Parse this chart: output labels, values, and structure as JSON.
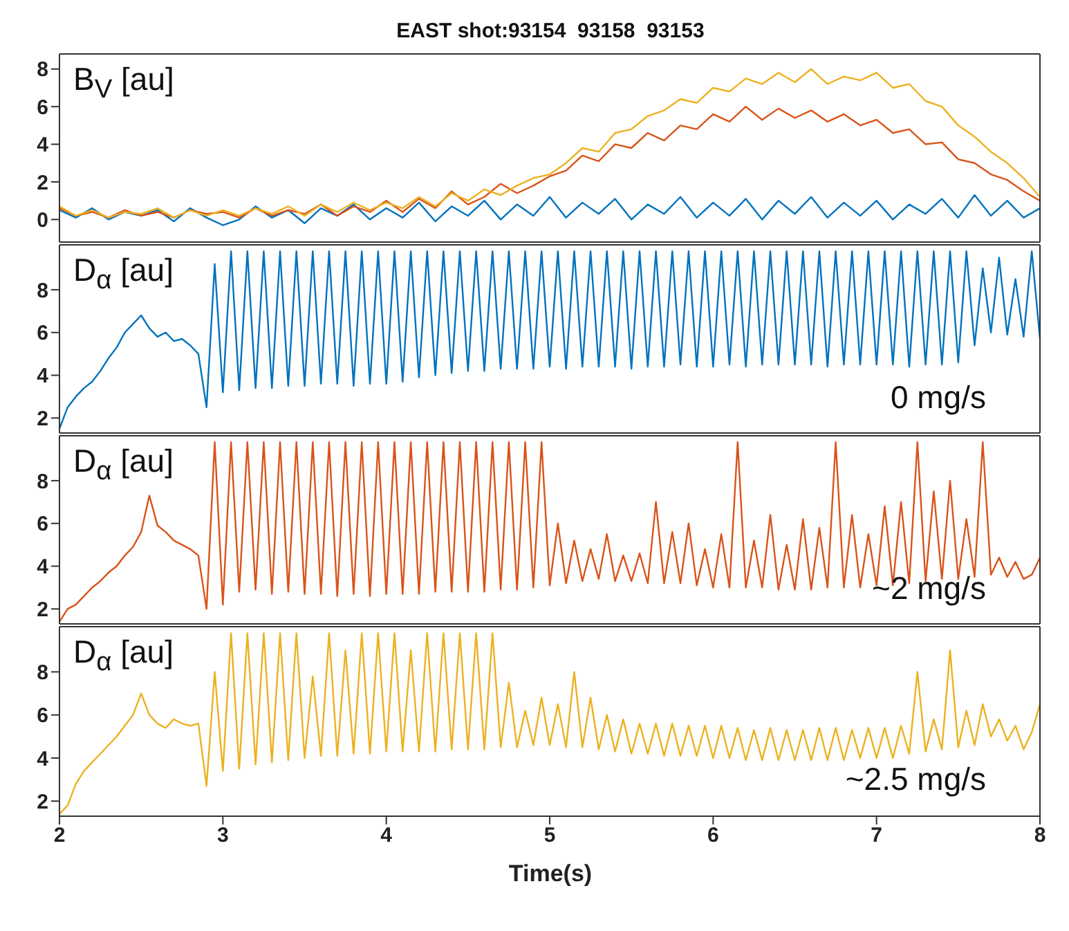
{
  "chart_data": [
    {
      "type": "line",
      "title": "EAST shot:93154  93158  93153",
      "annotations": [
        "B$_{V}$ [au]"
      ],
      "tick_labels": "y",
      "xlim": [
        2,
        8
      ],
      "xticks": [
        2,
        3,
        4,
        5,
        6,
        7,
        8
      ],
      "ylim": [
        -1.2,
        8.8
      ],
      "yticks": [
        0,
        2,
        4,
        6,
        8
      ],
      "marker": "none",
      "x": [
        2.0,
        2.1,
        2.2,
        2.3,
        2.4,
        2.5,
        2.6,
        2.7,
        2.8,
        2.9,
        3.0,
        3.1,
        3.2,
        3.3,
        3.4,
        3.5,
        3.6,
        3.7,
        3.8,
        3.9,
        4.0,
        4.1,
        4.2,
        4.3,
        4.4,
        4.5,
        4.6,
        4.7,
        4.8,
        4.9,
        5.0,
        5.1,
        5.2,
        5.3,
        5.4,
        5.5,
        5.6,
        5.7,
        5.8,
        5.9,
        6.0,
        6.1,
        6.2,
        6.3,
        6.4,
        6.5,
        6.6,
        6.7,
        6.8,
        6.9,
        7.0,
        7.1,
        7.2,
        7.3,
        7.4,
        7.5,
        7.6,
        7.7,
        7.8,
        7.9,
        8.0
      ],
      "series": [
        {
          "color": "#0072bd",
          "values": [
            0.5,
            0.1,
            0.6,
            0.0,
            0.4,
            0.2,
            0.5,
            -0.1,
            0.6,
            0.1,
            -0.3,
            0.0,
            0.7,
            0.1,
            0.5,
            -0.2,
            0.6,
            0.2,
            0.8,
            0.0,
            0.6,
            0.1,
            0.9,
            -0.1,
            0.7,
            0.2,
            1.0,
            0.0,
            0.8,
            0.2,
            1.2,
            0.1,
            0.9,
            0.3,
            1.1,
            0.0,
            0.8,
            0.3,
            1.2,
            0.1,
            0.9,
            0.2,
            1.1,
            0.0,
            1.0,
            0.3,
            1.2,
            0.1,
            0.9,
            0.2,
            1.0,
            0.0,
            0.8,
            0.3,
            1.1,
            0.1,
            1.3,
            0.2,
            1.0,
            0.1,
            0.6
          ]
        },
        {
          "color": "#d95319",
          "values": [
            0.6,
            0.2,
            0.4,
            0.1,
            0.5,
            0.2,
            0.4,
            0.1,
            0.5,
            0.3,
            0.4,
            0.1,
            0.6,
            0.2,
            0.5,
            0.3,
            0.8,
            0.2,
            0.7,
            0.4,
            1.0,
            0.4,
            1.1,
            0.6,
            1.5,
            0.8,
            1.2,
            1.9,
            1.4,
            1.8,
            2.3,
            2.6,
            3.4,
            3.1,
            4.0,
            3.8,
            4.6,
            4.2,
            5.0,
            4.8,
            5.6,
            5.2,
            6.0,
            5.3,
            5.9,
            5.4,
            5.8,
            5.2,
            5.6,
            5.0,
            5.3,
            4.6,
            4.8,
            4.0,
            4.1,
            3.2,
            3.0,
            2.4,
            2.1,
            1.5,
            1.0
          ]
        },
        {
          "color": "#edb120",
          "values": [
            0.7,
            0.2,
            0.5,
            0.1,
            0.4,
            0.3,
            0.6,
            0.1,
            0.5,
            0.2,
            0.5,
            0.2,
            0.6,
            0.3,
            0.7,
            0.2,
            0.8,
            0.4,
            0.9,
            0.5,
            0.9,
            0.6,
            1.2,
            0.7,
            1.4,
            1.0,
            1.6,
            1.3,
            1.8,
            2.2,
            2.4,
            3.0,
            3.8,
            3.6,
            4.6,
            4.8,
            5.5,
            5.8,
            6.4,
            6.2,
            7.0,
            6.8,
            7.5,
            7.2,
            7.8,
            7.3,
            8.0,
            7.2,
            7.6,
            7.4,
            7.8,
            7.0,
            7.2,
            6.3,
            6.0,
            5.0,
            4.4,
            3.6,
            3.0,
            2.2,
            1.2
          ]
        }
      ]
    },
    {
      "type": "line",
      "annotations": [
        "D$_{α}$ [au]",
        "0 mg/s"
      ],
      "tick_labels": "y",
      "xlim": [
        2,
        8
      ],
      "xticks": [
        2,
        3,
        4,
        5,
        6,
        7,
        8
      ],
      "ylim": [
        1.3,
        10.1
      ],
      "yticks": [
        2,
        4,
        6,
        8
      ],
      "marker": "none",
      "x": [
        2.0,
        2.05,
        2.1,
        2.15,
        2.2,
        2.25,
        2.3,
        2.35,
        2.4,
        2.45,
        2.5,
        2.55,
        2.6,
        2.65,
        2.7,
        2.75,
        2.8,
        2.85,
        2.9,
        2.95,
        3.0,
        3.05,
        3.1,
        3.15,
        3.2,
        3.25,
        3.3,
        3.35,
        3.4,
        3.45,
        3.5,
        3.55,
        3.6,
        3.65,
        3.7,
        3.75,
        3.8,
        3.85,
        3.9,
        3.95,
        4.0,
        4.05,
        4.1,
        4.15,
        4.2,
        4.25,
        4.3,
        4.35,
        4.4,
        4.45,
        4.5,
        4.55,
        4.6,
        4.65,
        4.7,
        4.75,
        4.8,
        4.85,
        4.9,
        4.95,
        5.0,
        5.05,
        5.1,
        5.15,
        5.2,
        5.25,
        5.3,
        5.35,
        5.4,
        5.45,
        5.5,
        5.55,
        5.6,
        5.65,
        5.7,
        5.75,
        5.8,
        5.85,
        5.9,
        5.95,
        6.0,
        6.05,
        6.1,
        6.15,
        6.2,
        6.25,
        6.3,
        6.35,
        6.4,
        6.45,
        6.5,
        6.55,
        6.6,
        6.65,
        6.7,
        6.75,
        6.8,
        6.85,
        6.9,
        6.95,
        7.0,
        7.05,
        7.1,
        7.15,
        7.2,
        7.25,
        7.3,
        7.35,
        7.4,
        7.45,
        7.5,
        7.55,
        7.6,
        7.65,
        7.7,
        7.75,
        7.8,
        7.85,
        7.9,
        7.95,
        8.0
      ],
      "series": [
        {
          "color": "#0072bd",
          "values": [
            1.5,
            2.5,
            3.0,
            3.4,
            3.7,
            4.2,
            4.8,
            5.3,
            6.0,
            6.4,
            6.8,
            6.2,
            5.8,
            6.0,
            5.6,
            5.7,
            5.4,
            5.0,
            2.5,
            9.2,
            3.2,
            9.8,
            3.3,
            9.8,
            3.4,
            9.8,
            3.4,
            9.8,
            3.5,
            9.8,
            3.5,
            9.8,
            3.6,
            9.8,
            3.6,
            9.8,
            3.5,
            9.8,
            3.6,
            9.8,
            3.6,
            9.8,
            3.7,
            9.8,
            3.9,
            9.8,
            4.0,
            9.8,
            4.1,
            9.8,
            4.2,
            9.8,
            4.2,
            9.8,
            4.3,
            9.8,
            4.3,
            9.8,
            4.3,
            9.8,
            4.4,
            9.8,
            4.3,
            9.8,
            4.4,
            9.8,
            4.4,
            9.8,
            4.4,
            9.8,
            4.3,
            9.8,
            4.4,
            9.8,
            4.4,
            9.8,
            4.5,
            9.8,
            4.4,
            9.8,
            4.4,
            9.8,
            4.5,
            9.8,
            4.4,
            9.8,
            4.5,
            9.8,
            4.5,
            9.8,
            4.5,
            9.8,
            4.5,
            9.8,
            4.4,
            9.8,
            4.5,
            9.8,
            4.5,
            9.8,
            4.5,
            9.8,
            4.5,
            9.8,
            4.4,
            9.8,
            4.5,
            9.8,
            4.5,
            9.8,
            4.6,
            9.8,
            5.4,
            9.0,
            6.0,
            9.5,
            5.9,
            8.5,
            5.8,
            9.8,
            5.7
          ]
        }
      ]
    },
    {
      "type": "line",
      "annotations": [
        "D$_{α}$ [au]",
        "~2 mg/s"
      ],
      "tick_labels": "y",
      "xlim": [
        2,
        8
      ],
      "xticks": [
        2,
        3,
        4,
        5,
        6,
        7,
        8
      ],
      "ylim": [
        1.3,
        10.1
      ],
      "yticks": [
        2,
        4,
        6,
        8
      ],
      "marker": "none",
      "x": [
        2.0,
        2.05,
        2.1,
        2.15,
        2.2,
        2.25,
        2.3,
        2.35,
        2.4,
        2.45,
        2.5,
        2.55,
        2.6,
        2.65,
        2.7,
        2.75,
        2.8,
        2.85,
        2.9,
        2.95,
        3.0,
        3.05,
        3.1,
        3.15,
        3.2,
        3.25,
        3.3,
        3.35,
        3.4,
        3.45,
        3.5,
        3.55,
        3.6,
        3.65,
        3.7,
        3.75,
        3.8,
        3.85,
        3.9,
        3.95,
        4.0,
        4.05,
        4.1,
        4.15,
        4.2,
        4.25,
        4.3,
        4.35,
        4.4,
        4.45,
        4.5,
        4.55,
        4.6,
        4.65,
        4.7,
        4.75,
        4.8,
        4.85,
        4.9,
        4.95,
        5.0,
        5.05,
        5.1,
        5.15,
        5.2,
        5.25,
        5.3,
        5.35,
        5.4,
        5.45,
        5.5,
        5.55,
        5.6,
        5.65,
        5.7,
        5.75,
        5.8,
        5.85,
        5.9,
        5.95,
        6.0,
        6.05,
        6.1,
        6.15,
        6.2,
        6.25,
        6.3,
        6.35,
        6.4,
        6.45,
        6.5,
        6.55,
        6.6,
        6.65,
        6.7,
        6.75,
        6.8,
        6.85,
        6.9,
        6.95,
        7.0,
        7.05,
        7.1,
        7.15,
        7.2,
        7.25,
        7.3,
        7.35,
        7.4,
        7.45,
        7.5,
        7.55,
        7.6,
        7.65,
        7.7,
        7.75,
        7.8,
        7.85,
        7.9,
        7.95,
        8.0
      ],
      "series": [
        {
          "color": "#d95319",
          "values": [
            1.4,
            2.0,
            2.2,
            2.6,
            3.0,
            3.3,
            3.7,
            4.0,
            4.5,
            4.9,
            5.6,
            7.3,
            5.9,
            5.6,
            5.2,
            5.0,
            4.8,
            4.5,
            2.0,
            9.8,
            2.2,
            9.8,
            2.8,
            9.8,
            2.9,
            9.8,
            2.7,
            9.8,
            2.8,
            9.8,
            2.7,
            9.8,
            2.7,
            9.8,
            2.6,
            9.8,
            2.7,
            9.8,
            2.6,
            9.8,
            2.7,
            9.8,
            2.7,
            9.8,
            2.7,
            9.8,
            2.8,
            9.8,
            2.8,
            9.8,
            2.8,
            9.8,
            2.8,
            9.8,
            2.9,
            9.8,
            2.9,
            9.8,
            3.0,
            9.8,
            3.1,
            6.0,
            3.2,
            5.2,
            3.3,
            4.8,
            3.4,
            5.5,
            3.3,
            4.5,
            3.3,
            4.6,
            3.2,
            7.0,
            3.2,
            5.6,
            3.2,
            6.0,
            3.1,
            4.8,
            3.0,
            5.5,
            3.0,
            9.8,
            3.0,
            5.2,
            3.0,
            6.4,
            2.9,
            5.0,
            2.9,
            6.2,
            2.9,
            5.8,
            3.0,
            9.8,
            3.0,
            6.4,
            3.0,
            5.5,
            3.1,
            6.8,
            3.1,
            7.0,
            3.2,
            9.8,
            3.3,
            7.5,
            3.4,
            8.0,
            3.4,
            6.2,
            3.5,
            9.8,
            3.6,
            4.4,
            3.5,
            4.2,
            3.4,
            3.6,
            4.4
          ]
        }
      ]
    },
    {
      "type": "line",
      "annotations": [
        "D$_{α}$ [au]",
        "~2.5 mg/s"
      ],
      "xlabel": "Time(s)",
      "xlim": [
        2,
        8
      ],
      "xticks": [
        2,
        3,
        4,
        5,
        6,
        7,
        8
      ],
      "ylim": [
        1.3,
        10.1
      ],
      "yticks": [
        2,
        4,
        6,
        8
      ],
      "marker": "none",
      "x": [
        2.0,
        2.05,
        2.1,
        2.15,
        2.2,
        2.25,
        2.3,
        2.35,
        2.4,
        2.45,
        2.5,
        2.55,
        2.6,
        2.65,
        2.7,
        2.75,
        2.8,
        2.85,
        2.9,
        2.95,
        3.0,
        3.05,
        3.1,
        3.15,
        3.2,
        3.25,
        3.3,
        3.35,
        3.4,
        3.45,
        3.5,
        3.55,
        3.6,
        3.65,
        3.7,
        3.75,
        3.8,
        3.85,
        3.9,
        3.95,
        4.0,
        4.05,
        4.1,
        4.15,
        4.2,
        4.25,
        4.3,
        4.35,
        4.4,
        4.45,
        4.5,
        4.55,
        4.6,
        4.65,
        4.7,
        4.75,
        4.8,
        4.85,
        4.9,
        4.95,
        5.0,
        5.05,
        5.1,
        5.15,
        5.2,
        5.25,
        5.3,
        5.35,
        5.4,
        5.45,
        5.5,
        5.55,
        5.6,
        5.65,
        5.7,
        5.75,
        5.8,
        5.85,
        5.9,
        5.95,
        6.0,
        6.05,
        6.1,
        6.15,
        6.2,
        6.25,
        6.3,
        6.35,
        6.4,
        6.45,
        6.5,
        6.55,
        6.6,
        6.65,
        6.7,
        6.75,
        6.8,
        6.85,
        6.9,
        6.95,
        7.0,
        7.05,
        7.1,
        7.15,
        7.2,
        7.25,
        7.3,
        7.35,
        7.4,
        7.45,
        7.5,
        7.55,
        7.6,
        7.65,
        7.7,
        7.75,
        7.8,
        7.85,
        7.9,
        7.95,
        8.0
      ],
      "series": [
        {
          "color": "#edb120",
          "values": [
            1.4,
            1.8,
            2.8,
            3.4,
            3.8,
            4.2,
            4.6,
            5.0,
            5.5,
            6.0,
            7.0,
            6.0,
            5.6,
            5.4,
            5.8,
            5.6,
            5.5,
            5.6,
            2.7,
            8.0,
            3.4,
            9.8,
            3.5,
            9.8,
            3.7,
            9.8,
            3.8,
            9.8,
            3.9,
            9.8,
            4.0,
            7.8,
            4.1,
            9.8,
            4.1,
            9.0,
            4.2,
            9.8,
            4.2,
            9.8,
            4.3,
            9.8,
            4.3,
            9.0,
            4.3,
            9.8,
            4.3,
            9.8,
            4.4,
            9.8,
            4.4,
            9.8,
            4.4,
            9.8,
            4.5,
            7.5,
            4.5,
            6.2,
            4.6,
            6.8,
            4.6,
            6.5,
            4.5,
            8.0,
            4.5,
            6.8,
            4.4,
            6.0,
            4.3,
            5.8,
            4.2,
            5.6,
            4.2,
            5.6,
            4.1,
            5.6,
            4.1,
            5.5,
            4.1,
            5.5,
            4.0,
            5.5,
            4.0,
            5.4,
            3.9,
            5.3,
            3.9,
            5.4,
            3.9,
            5.3,
            3.9,
            5.3,
            3.9,
            5.4,
            3.9,
            5.4,
            3.9,
            5.3,
            4.0,
            5.4,
            4.0,
            5.4,
            4.0,
            5.5,
            4.2,
            8.0,
            4.3,
            5.8,
            4.4,
            9.0,
            4.5,
            6.2,
            4.6,
            6.5,
            5.0,
            5.8,
            4.8,
            5.5,
            4.4,
            5.2,
            6.5
          ]
        }
      ]
    }
  ]
}
